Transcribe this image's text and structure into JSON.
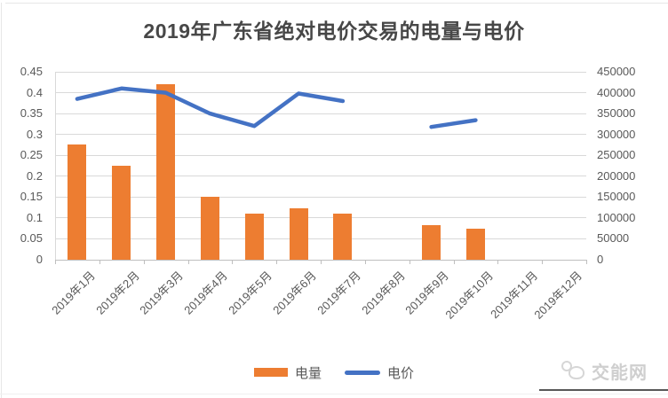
{
  "chart_data": {
    "type": "combo-bar-line",
    "title": "2019年广东省绝对电价交易的电量与电价",
    "categories": [
      "2019年1月",
      "2019年2月",
      "2019年3月",
      "2019年4月",
      "2019年5月",
      "2019年6月",
      "2019年7月",
      "2019年8月",
      "2019年9月",
      "2019年10月",
      "2019年11月",
      "2019年12月"
    ],
    "series": [
      {
        "name": "电量",
        "type": "bar",
        "axis": "right",
        "color": "#ED7D31",
        "values": [
          275000,
          225000,
          420000,
          150000,
          110000,
          123000,
          111000,
          null,
          82000,
          74000,
          null,
          null
        ]
      },
      {
        "name": "电价",
        "type": "line",
        "axis": "left",
        "color": "#4472C4",
        "values": [
          0.385,
          0.41,
          0.4,
          0.35,
          0.32,
          0.398,
          0.38,
          null,
          0.318,
          0.334,
          null,
          null
        ]
      }
    ],
    "left_axis": {
      "min": 0,
      "max": 0.45,
      "step": 0.05,
      "ticks": [
        "0",
        "0.05",
        "0.1",
        "0.15",
        "0.2",
        "0.25",
        "0.3",
        "0.35",
        "0.4",
        "0.45"
      ]
    },
    "right_axis": {
      "min": 0,
      "max": 450000,
      "step": 50000,
      "ticks": [
        "0",
        "50000",
        "100000",
        "150000",
        "200000",
        "250000",
        "300000",
        "350000",
        "400000",
        "450000"
      ]
    },
    "grid": true,
    "legend_position": "bottom"
  },
  "watermark": {
    "text": "交能网"
  },
  "colors": {
    "bar": "#ED7D31",
    "line": "#4472C4",
    "grid": "#d9d9d9",
    "axis": "#bfbfbf",
    "axis_text": "#595959",
    "title_text": "#474747",
    "watermark_text": "#cfcfcf",
    "watermark_rule": "#575757"
  }
}
